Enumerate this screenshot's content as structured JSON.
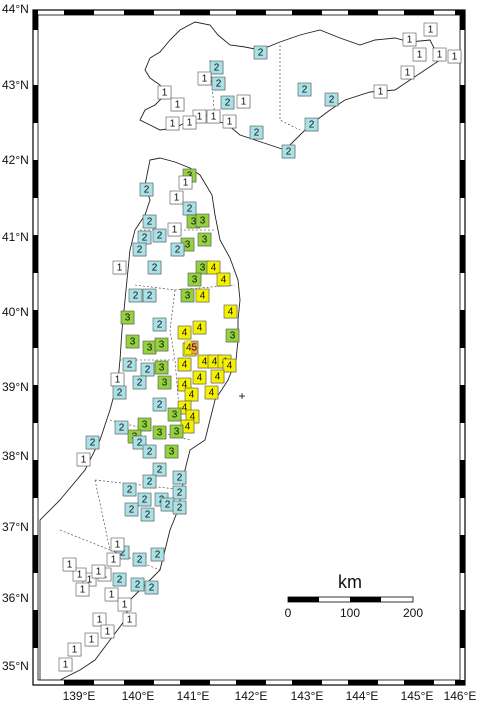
{
  "map": {
    "lat_labels": [
      "44°N",
      "43°N",
      "42°N",
      "41°N",
      "40°N",
      "39°N",
      "38°N",
      "37°N",
      "36°N",
      "35°N"
    ],
    "lon_labels": [
      "139°E",
      "140°E",
      "141°E",
      "142°E",
      "143°E",
      "144°E",
      "145°E",
      "146°E"
    ],
    "epicenter_marker": "+",
    "scale": {
      "unit": "km",
      "ticks": [
        "0",
        "100",
        "200"
      ]
    },
    "intensity_colors": {
      "1": "#ffffff",
      "2": "#a8e1e6",
      "3": "#93d13f",
      "4": "#f4f000",
      "5-": "#f2a33c"
    }
  }
}
